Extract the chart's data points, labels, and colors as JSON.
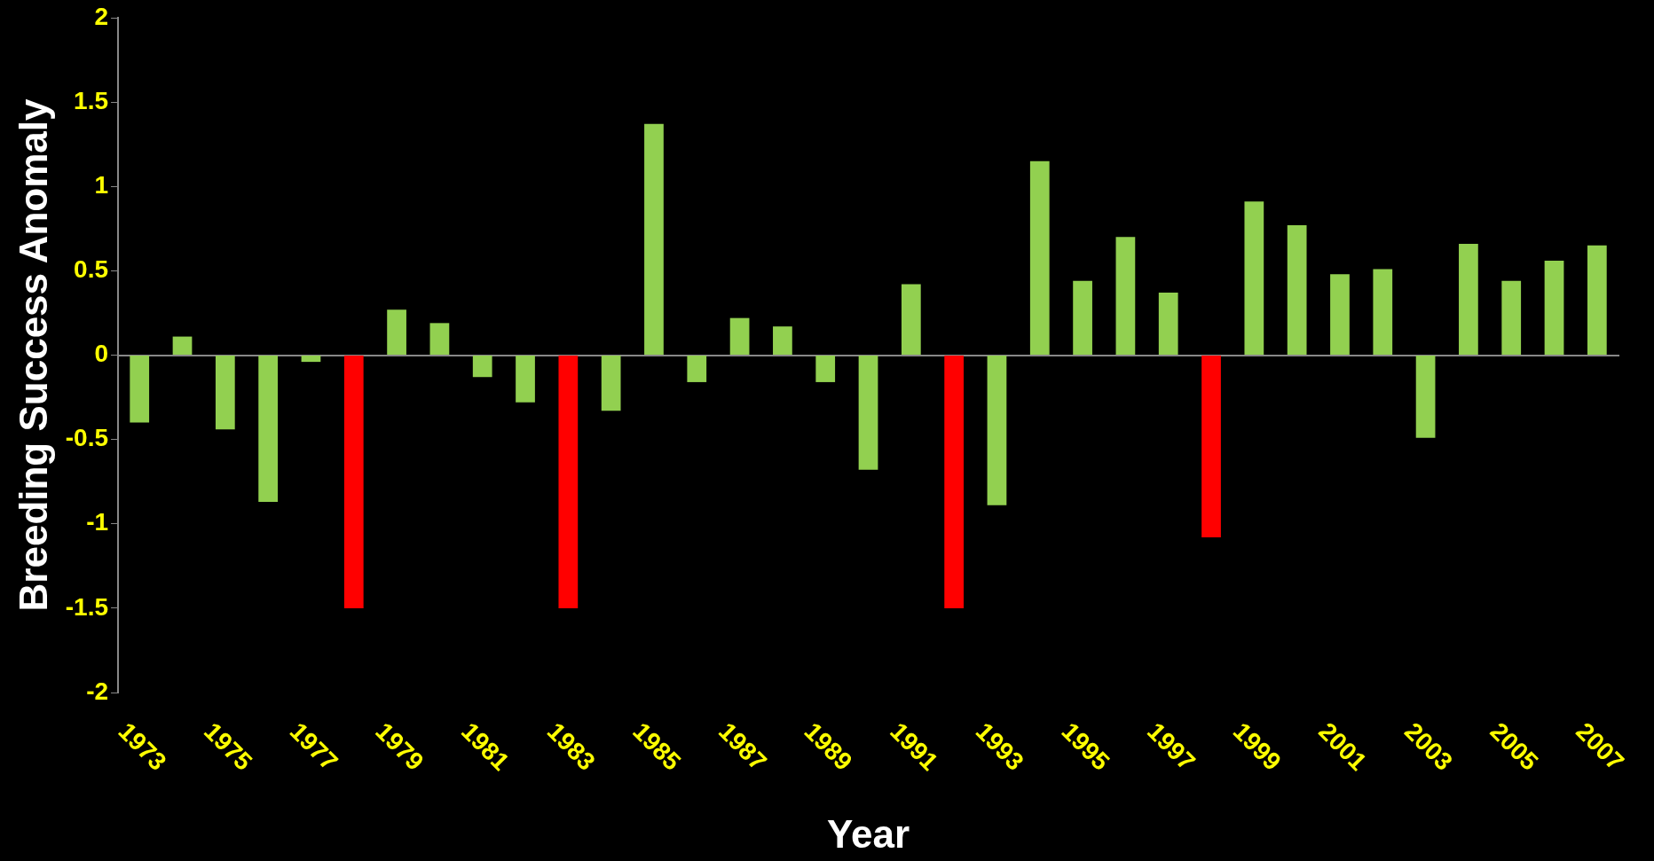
{
  "chart_data": {
    "type": "bar",
    "xlabel": "Year",
    "ylabel": "Breeding Success Anomaly",
    "categories": [
      "1973",
      null,
      "1975",
      null,
      "1977",
      null,
      "1979",
      null,
      "1981",
      null,
      "1983",
      null,
      "1985",
      null,
      "1987",
      null,
      "1989",
      null,
      "1991",
      null,
      "1993",
      null,
      "1995",
      null,
      "1997",
      null,
      "1999",
      null,
      "2001",
      null,
      "2003",
      null,
      "2005",
      null,
      "2007"
    ],
    "values": [
      -0.4,
      0.11,
      -0.44,
      -0.87,
      -0.04,
      -1.5,
      0.27,
      0.19,
      -0.13,
      -0.28,
      -1.5,
      -0.33,
      1.37,
      -0.16,
      0.22,
      0.17,
      -0.16,
      -0.68,
      0.42,
      -1.5,
      -0.89,
      1.15,
      0.44,
      0.7,
      0.37,
      -1.08,
      0.91,
      0.77,
      0.48,
      0.51,
      -0.49,
      0.66,
      0.44,
      0.56,
      0.65
    ],
    "colors": [
      "#92d050",
      "#92d050",
      "#92d050",
      "#92d050",
      "#92d050",
      "#ff0000",
      "#92d050",
      "#92d050",
      "#92d050",
      "#92d050",
      "#ff0000",
      "#92d050",
      "#92d050",
      "#92d050",
      "#92d050",
      "#92d050",
      "#92d050",
      "#92d050",
      "#92d050",
      "#ff0000",
      "#92d050",
      "#92d050",
      "#92d050",
      "#92d050",
      "#92d050",
      "#ff0000",
      "#92d050",
      "#92d050",
      "#92d050",
      "#92d050",
      "#92d050",
      "#92d050",
      "#92d050",
      "#92d050",
      "#92d050"
    ],
    "ylim": [
      -2,
      2
    ],
    "yticks": [
      -2,
      -1.5,
      -1,
      -0.5,
      0,
      0.5,
      1,
      1.5,
      2
    ],
    "legend": false
  }
}
